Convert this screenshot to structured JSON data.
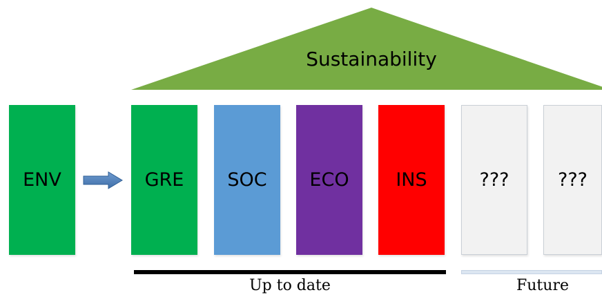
{
  "roof": {
    "label": "Sustainability",
    "color": "#78ac44"
  },
  "source": {
    "label": "ENV",
    "color": "#00b050"
  },
  "arrow": {
    "color": "#4f81bd"
  },
  "pillars": [
    {
      "label": "GRE",
      "color": "#00b050"
    },
    {
      "label": "SOC",
      "color": "#5b9bd5"
    },
    {
      "label": "ECO",
      "color": "#7030a0"
    },
    {
      "label": "INS",
      "color": "#ff0000"
    }
  ],
  "future_pillars": [
    {
      "label": "???",
      "color": "#f2f2f2"
    },
    {
      "label": "???",
      "color": "#f2f2f2"
    }
  ],
  "groups": {
    "current": {
      "label": "Up to date",
      "bar_color": "#000000"
    },
    "future": {
      "label": "Future",
      "bar_color": "#dce6f1"
    }
  }
}
